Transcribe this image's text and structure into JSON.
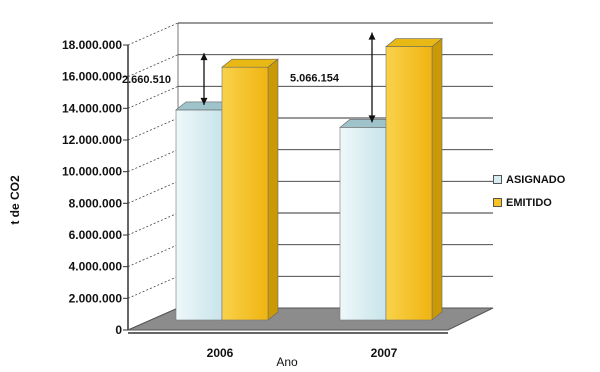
{
  "chart_data": {
    "type": "bar",
    "categories": [
      "2006",
      "2007"
    ],
    "xlabel": "Ano",
    "ylabel": "t de CO2",
    "ylim": [
      0,
      18000000
    ],
    "yticks": [
      "0",
      "2.000.000",
      "4.000.000",
      "6.000.000",
      "8.000.000",
      "10.000.000",
      "12.000.000",
      "14.000.000",
      "16.000.000",
      "18.000.000"
    ],
    "series": [
      {
        "name": "ASIGNADO",
        "values": [
          13900000,
          12800000
        ],
        "color": "#d6ecf0"
      },
      {
        "name": "EMITIDO",
        "values": [
          16600000,
          17900000
        ],
        "color": "#f7c322"
      }
    ],
    "annotations": [
      {
        "category": "2006",
        "label": "2.660.510"
      },
      {
        "category": "2007",
        "label": "5.066.154"
      }
    ],
    "grid": true,
    "legend_position": "right",
    "three_d": true
  }
}
